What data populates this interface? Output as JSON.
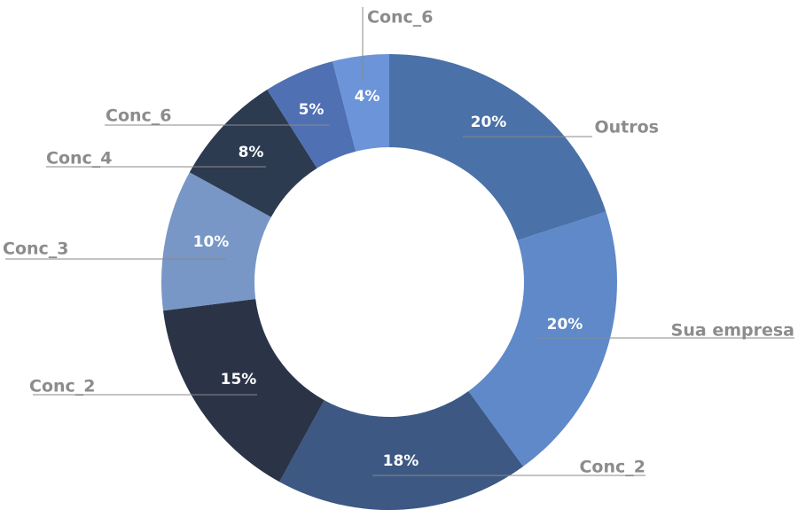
{
  "chart_data": {
    "type": "pie",
    "donut": true,
    "title": "",
    "categories": [
      "Outros",
      "Sua empresa",
      "Conc_2",
      "Conc_2",
      "Conc_3",
      "Conc_4",
      "Conc_6",
      "Conc_6"
    ],
    "values": [
      20,
      20,
      18,
      15,
      10,
      8,
      5,
      4
    ],
    "value_labels": [
      "20%",
      "20%",
      "18%",
      "15%",
      "10%",
      "8%",
      "5%",
      "4%"
    ],
    "colors": [
      "#4a71a8",
      "#5f89c8",
      "#3c5883",
      "#2b3447",
      "#7897c6",
      "#2d3b51",
      "#4f70b3",
      "#6b94d9"
    ],
    "start": "12 o'clock, clockwise",
    "legend": "none (labels outside with leader lines)"
  }
}
